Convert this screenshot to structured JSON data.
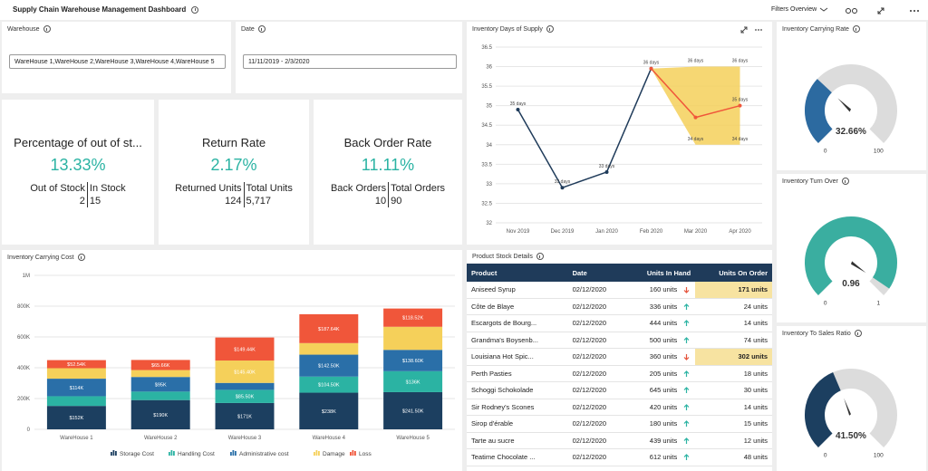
{
  "header": {
    "title": "Supply Chain Warehouse Management Dashboard",
    "filters_overview": "Filters Overview"
  },
  "filters": [
    {
      "label": "Warehouse",
      "value": "WareHouse 1,WareHouse 2,WareHouse 3,WareHouse 4,WareHouse 5"
    },
    {
      "label": "Date",
      "value": "11/11/2019 - 2/3/2020"
    }
  ],
  "kpis": [
    {
      "title": "Percentage of out of st...",
      "value": "13.33%",
      "items": [
        {
          "label": "Out of Stock",
          "value": "2"
        },
        {
          "label": "In Stock",
          "value": "15"
        }
      ]
    },
    {
      "title": "Return Rate",
      "value": "2.17%",
      "items": [
        {
          "label": "Returned Units",
          "value": "124"
        },
        {
          "label": "Total Units",
          "value": "5,717"
        }
      ]
    },
    {
      "title": "Back Order Rate",
      "value": "11.11%",
      "items": [
        {
          "label": "Back Orders",
          "value": "10"
        },
        {
          "label": "Total Orders",
          "value": "90"
        }
      ]
    }
  ],
  "chart_data": [
    {
      "type": "line",
      "title": "Inventory Days of Supply",
      "categories": [
        "Nov 2019",
        "Dec 2019",
        "Jan 2020",
        "Feb 2020",
        "Mar 2020",
        "Apr 2020"
      ],
      "series": [
        {
          "color": "#1f3b5a",
          "values": [
            34.9,
            32.9,
            33.3,
            35.95,
            null,
            null
          ],
          "value_labels": [
            "35 days",
            "33 days",
            "33 days",
            "36 days",
            null,
            null
          ]
        },
        {
          "color": "#f0563a",
          "values": [
            null,
            null,
            null,
            35.95,
            34.7,
            35
          ],
          "value_labels": [
            null,
            null,
            null,
            null,
            null,
            "35 days"
          ]
        },
        {
          "color": "#f5d05a",
          "style": "band",
          "values": [
            null,
            null,
            null,
            35.95,
            36,
            36
          ],
          "value_labels": [
            null,
            null,
            null,
            null,
            "36 days",
            "36 days"
          ]
        },
        {
          "color": "#f5d05a",
          "style": "band",
          "values": [
            null,
            null,
            null,
            35.95,
            34,
            34
          ],
          "value_labels": [
            null,
            null,
            null,
            null,
            "34 days",
            "34 days"
          ]
        }
      ],
      "ylim": [
        32,
        36.5
      ],
      "yticks": [
        32,
        32.5,
        33,
        33.5,
        34,
        34.5,
        35,
        35.5,
        36,
        36.5
      ],
      "grid": true
    },
    {
      "type": "bar",
      "stacked": true,
      "title": "Inventory Carrying Cost",
      "categories": [
        "WareHouse 1",
        "WareHouse 2",
        "WareHouse 3",
        "WareHouse 4",
        "WareHouse 5"
      ],
      "series": [
        {
          "name": "Storage Cost",
          "color": "#1c3f60",
          "values": [
            152000,
            190000,
            171000,
            238000,
            241500
          ],
          "value_labels": [
            "$152K",
            "$190K",
            "$171K",
            "$238K",
            "$241.50K"
          ]
        },
        {
          "name": "Handling Cost",
          "color": "#2bb3a3",
          "values": [
            63000,
            55000,
            85500,
            104500,
            136000
          ],
          "value_labels": [
            null,
            null,
            "$85.50K",
            "$104.50K",
            "$136K"
          ]
        },
        {
          "name": "Administrative cost",
          "color": "#2a6fa8",
          "values": [
            114000,
            95000,
            45000,
            142500,
            138600
          ],
          "value_labels": [
            "$114K",
            "$95K",
            null,
            "$142.50K",
            "$138.60K"
          ]
        },
        {
          "name": "Damage",
          "color": "#f5d05a",
          "values": [
            68000,
            45000,
            145400,
            75000,
            150000
          ],
          "value_labels": [
            null,
            null,
            "$145.40K",
            null,
            null
          ]
        },
        {
          "name": "Loss",
          "color": "#f0563a",
          "values": [
            52540,
            65660,
            149440,
            187640,
            118520
          ],
          "value_labels": [
            "$52.54K",
            "$65.66K",
            "$149.44K",
            "$187.64K",
            "$118.52K"
          ]
        }
      ],
      "ylim": [
        0,
        1000000
      ],
      "yticks": [
        0,
        {
          "value": 200000,
          "label": "200K"
        },
        {
          "value": 400000,
          "label": "400K"
        },
        {
          "value": 600000,
          "label": "600K"
        },
        {
          "value": 800000,
          "label": "800K"
        },
        {
          "value": 1000000,
          "label": "1M"
        }
      ],
      "grid": true,
      "legend": "bottom"
    }
  ],
  "table": {
    "title": "Product Stock Details",
    "columns": [
      "Product",
      "Date",
      "Units In Hand",
      "Units On Order"
    ],
    "rows": [
      [
        "Aniseed Syrup",
        "02/12/2020",
        "160 units",
        "171 units"
      ],
      [
        "Côte de Blaye",
        "02/12/2020",
        "336 units",
        "24 units"
      ],
      [
        "Escargots de Bourg...",
        "02/12/2020",
        "444 units",
        "14 units"
      ],
      [
        "Grandma's Boysenb...",
        "02/12/2020",
        "500 units",
        "74 units"
      ],
      [
        "Louisiana Hot Spic...",
        "02/12/2020",
        "360 units",
        "302 units"
      ],
      [
        "Perth Pasties",
        "02/12/2020",
        "205 units",
        "18 units"
      ],
      [
        "Schoggi Schokolade",
        "02/12/2020",
        "645 units",
        "30 units"
      ],
      [
        "Sir Rodney's Scones",
        "02/12/2020",
        "420 units",
        "14 units"
      ],
      [
        "Sirop d'érable",
        "02/12/2020",
        "180 units",
        "15 units"
      ],
      [
        "Tarte au sucre",
        "02/12/2020",
        "439 units",
        "12 units"
      ],
      [
        "Teatime Chocolate ...",
        "02/12/2020",
        "612 units",
        "48 units"
      ]
    ],
    "trend": [
      "down",
      "up",
      "up",
      "up",
      "down",
      "up",
      "up",
      "up",
      "up",
      "up",
      "up"
    ]
  },
  "gauges": [
    {
      "title": "Inventory Carrying Rate",
      "value": 32.66,
      "value_label": "32.66%",
      "range": [
        0,
        100
      ],
      "ticks": [
        0,
        100
      ],
      "color": "#2c6aa0"
    },
    {
      "title": "Inventory Turn Over",
      "value": 0.96,
      "range": [
        0,
        1
      ],
      "ticks": [
        0,
        1
      ],
      "color": "#3aaea0"
    },
    {
      "title": "Inventory To Sales Ratio",
      "value": 41.5,
      "value_label": "41.50%",
      "range": [
        0,
        100
      ],
      "ticks": [
        0,
        100
      ],
      "color": "#1c3f60"
    }
  ]
}
